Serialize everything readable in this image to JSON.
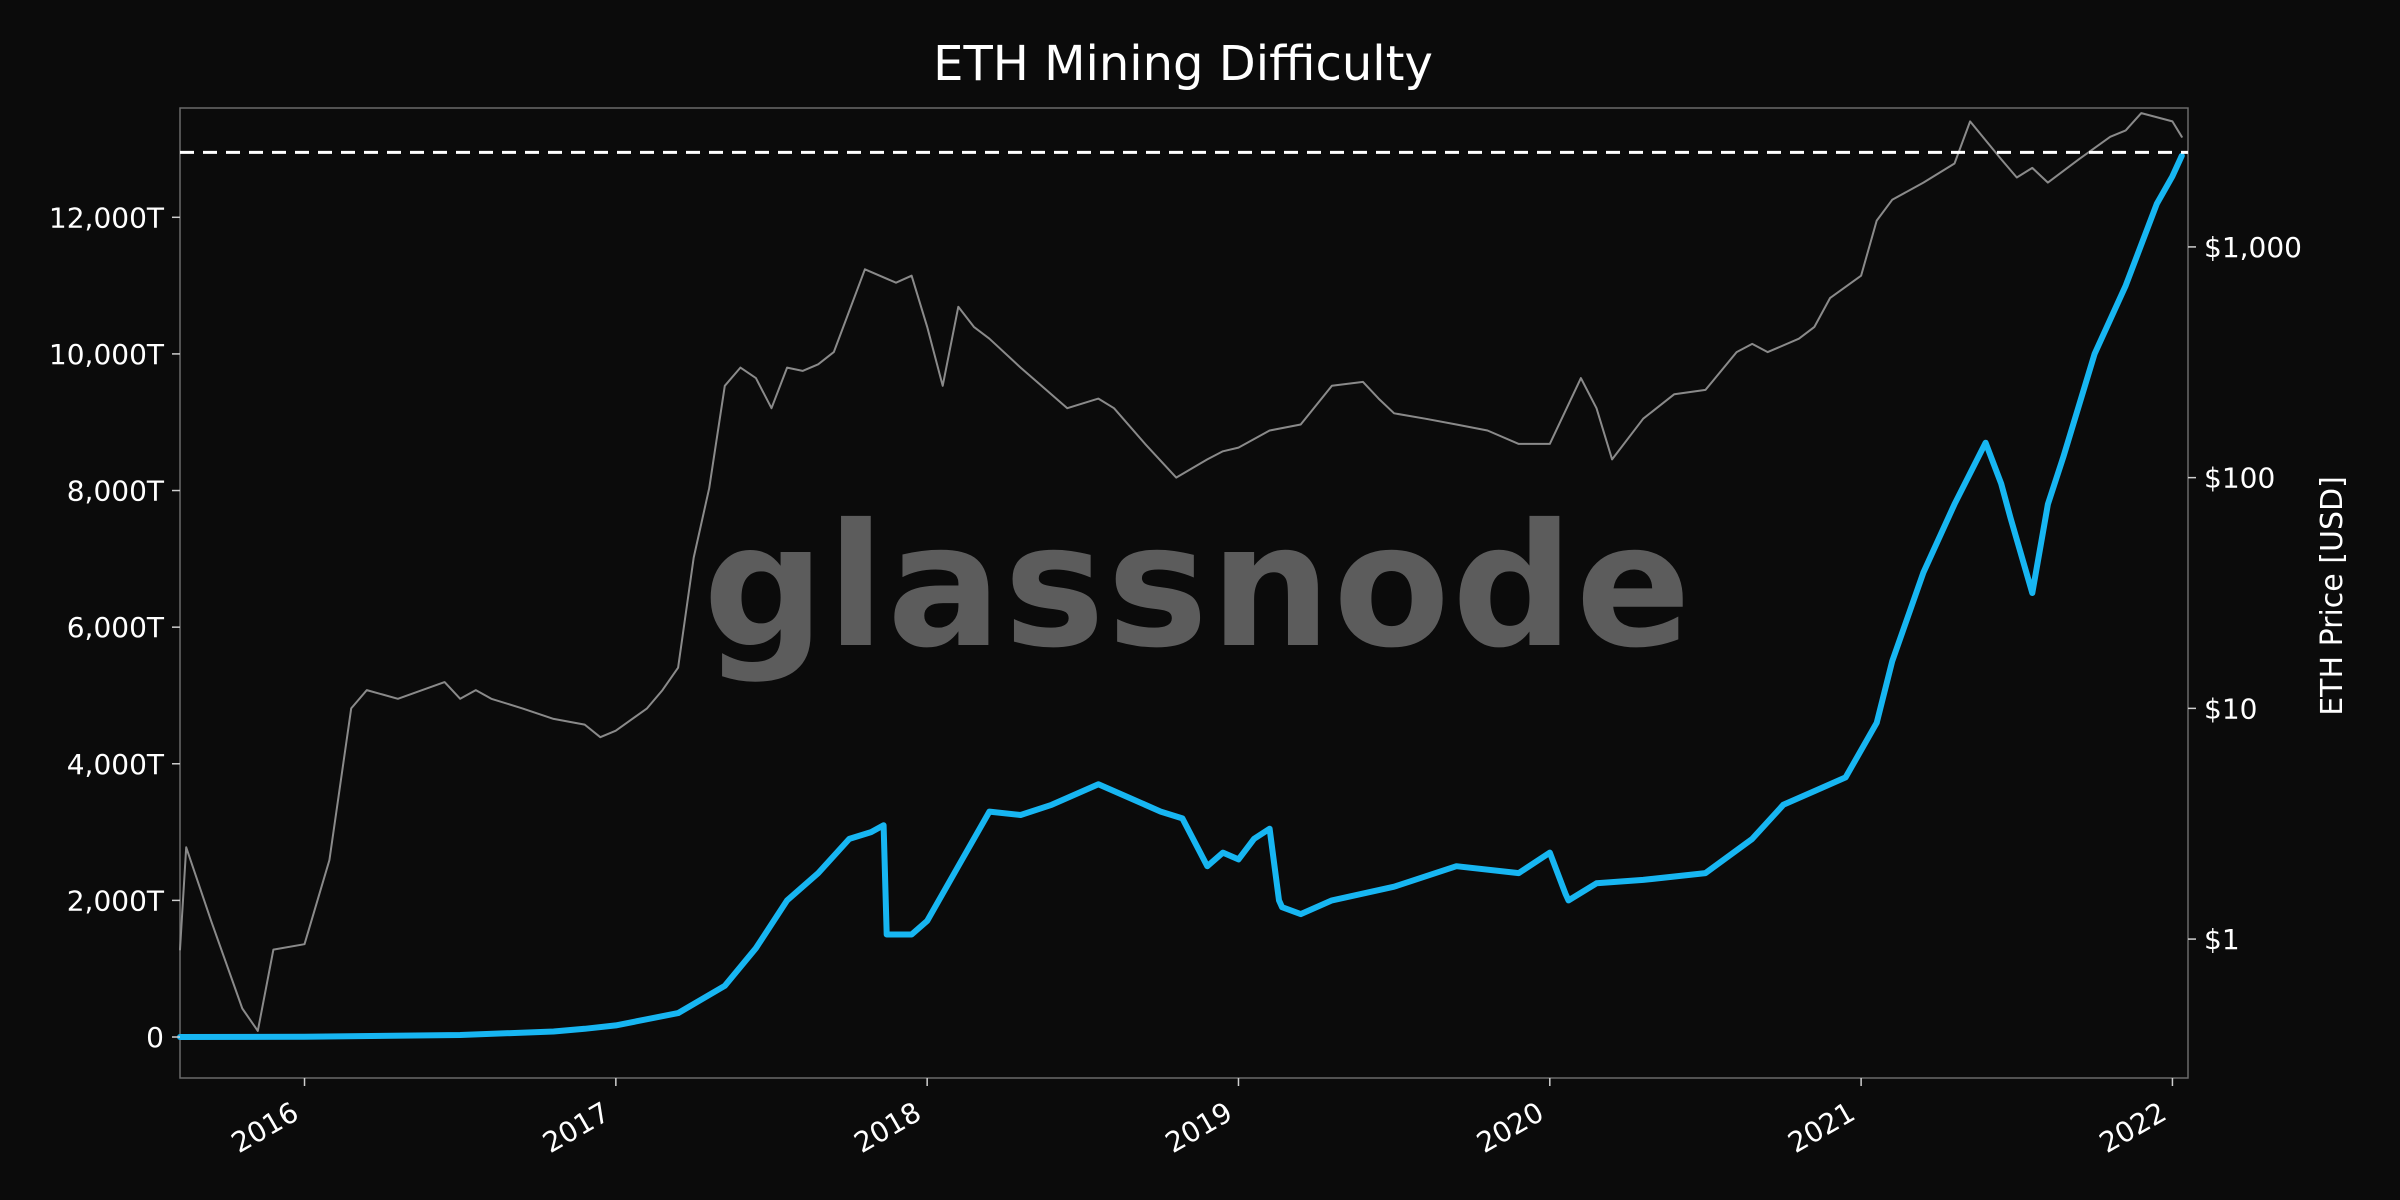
{
  "chart_data": {
    "type": "line",
    "title": "ETH Mining Difficulty",
    "watermark": "glassnode",
    "x_tick_labels": [
      "2016",
      "2017",
      "2018",
      "2019",
      "2020",
      "2021",
      "2022"
    ],
    "x_range": [
      2015.6,
      2022.05
    ],
    "left_axis": {
      "label": "",
      "range": [
        -600,
        13600
      ],
      "ticks": [
        0,
        2000,
        4000,
        6000,
        8000,
        10000,
        12000
      ],
      "tick_labels": [
        "0",
        "2,000T",
        "4,000T",
        "6,000T",
        "8,000T",
        "10,000T",
        "12,000T"
      ]
    },
    "right_axis": {
      "label": "ETH Price [USD]",
      "scale": "log",
      "range": [
        0.25,
        4000
      ],
      "ticks": [
        1,
        10,
        100,
        1000
      ],
      "tick_labels": [
        "$1",
        "$10",
        "$100",
        "$1,000"
      ]
    },
    "ath_line": {
      "value": 12950,
      "style": "dashed",
      "color": "#ffffff"
    },
    "series": [
      {
        "name": "Mining Difficulty",
        "axis": "left",
        "color": "#17b6f2",
        "x": [
          2015.6,
          2016.0,
          2016.5,
          2016.8,
          2016.9,
          2017.0,
          2017.2,
          2017.35,
          2017.45,
          2017.55,
          2017.65,
          2017.75,
          2017.82,
          2017.86,
          2017.87,
          2017.95,
          2018.0,
          2018.1,
          2018.2,
          2018.3,
          2018.4,
          2018.55,
          2018.65,
          2018.75,
          2018.82,
          2018.9,
          2018.95,
          2019.0,
          2019.05,
          2019.1,
          2019.13,
          2019.14,
          2019.2,
          2019.3,
          2019.5,
          2019.7,
          2019.9,
          2020.0,
          2020.05,
          2020.06,
          2020.15,
          2020.3,
          2020.5,
          2020.65,
          2020.75,
          2020.85,
          2020.95,
          2021.05,
          2021.1,
          2021.2,
          2021.3,
          2021.4,
          2021.45,
          2021.48,
          2021.55,
          2021.6,
          2021.65,
          2021.75,
          2021.85,
          2021.95,
          2022.0,
          2022.03
        ],
        "values": [
          0,
          5,
          30,
          80,
          120,
          170,
          350,
          750,
          1300,
          2000,
          2400,
          2900,
          3000,
          3100,
          1500,
          1500,
          1700,
          2500,
          3300,
          3250,
          3400,
          3700,
          3500,
          3300,
          3200,
          2500,
          2700,
          2600,
          2900,
          3050,
          2000,
          1900,
          1800,
          2000,
          2200,
          2500,
          2400,
          2700,
          2100,
          2000,
          2250,
          2300,
          2400,
          2900,
          3400,
          3600,
          3800,
          4600,
          5500,
          6800,
          7800,
          8700,
          8100,
          7600,
          6500,
          7800,
          8500,
          10000,
          11000,
          12200,
          12600,
          12900
        ]
      },
      {
        "name": "ETH Price [USD]",
        "axis": "right",
        "color": "#8a8a8a",
        "x": [
          2015.6,
          2015.62,
          2015.7,
          2015.8,
          2015.85,
          2015.9,
          2016.0,
          2016.08,
          2016.15,
          2016.2,
          2016.3,
          2016.45,
          2016.5,
          2016.55,
          2016.6,
          2016.7,
          2016.8,
          2016.9,
          2016.95,
          2017.0,
          2017.1,
          2017.15,
          2017.2,
          2017.25,
          2017.3,
          2017.35,
          2017.4,
          2017.45,
          2017.5,
          2017.55,
          2017.6,
          2017.65,
          2017.7,
          2017.8,
          2017.9,
          2017.95,
          2018.0,
          2018.05,
          2018.1,
          2018.15,
          2018.2,
          2018.3,
          2018.45,
          2018.55,
          2018.6,
          2018.7,
          2018.8,
          2018.9,
          2018.95,
          2019.0,
          2019.1,
          2019.2,
          2019.3,
          2019.4,
          2019.45,
          2019.5,
          2019.6,
          2019.7,
          2019.8,
          2019.9,
          2020.0,
          2020.1,
          2020.15,
          2020.2,
          2020.3,
          2020.4,
          2020.5,
          2020.6,
          2020.65,
          2020.7,
          2020.8,
          2020.85,
          2020.9,
          2021.0,
          2021.05,
          2021.1,
          2021.2,
          2021.3,
          2021.35,
          2021.45,
          2021.5,
          2021.55,
          2021.6,
          2021.7,
          2021.8,
          2021.85,
          2021.9,
          2022.0,
          2022.03
        ],
        "values": [
          0.9,
          2.5,
          1.2,
          0.5,
          0.4,
          0.9,
          0.95,
          2.2,
          10,
          12,
          11,
          13,
          11,
          12,
          11,
          10,
          9,
          8.5,
          7.5,
          8,
          10,
          12,
          15,
          45,
          90,
          250,
          300,
          270,
          200,
          300,
          290,
          310,
          350,
          800,
          700,
          750,
          450,
          250,
          550,
          450,
          400,
          300,
          200,
          220,
          200,
          140,
          100,
          120,
          130,
          135,
          160,
          170,
          250,
          260,
          220,
          190,
          180,
          170,
          160,
          140,
          140,
          270,
          200,
          120,
          180,
          230,
          240,
          350,
          380,
          350,
          400,
          450,
          600,
          750,
          1300,
          1600,
          1900,
          2300,
          3500,
          2400,
          2000,
          2200,
          1900,
          2400,
          3000,
          3200,
          3800,
          3500,
          3000
        ]
      }
    ]
  }
}
